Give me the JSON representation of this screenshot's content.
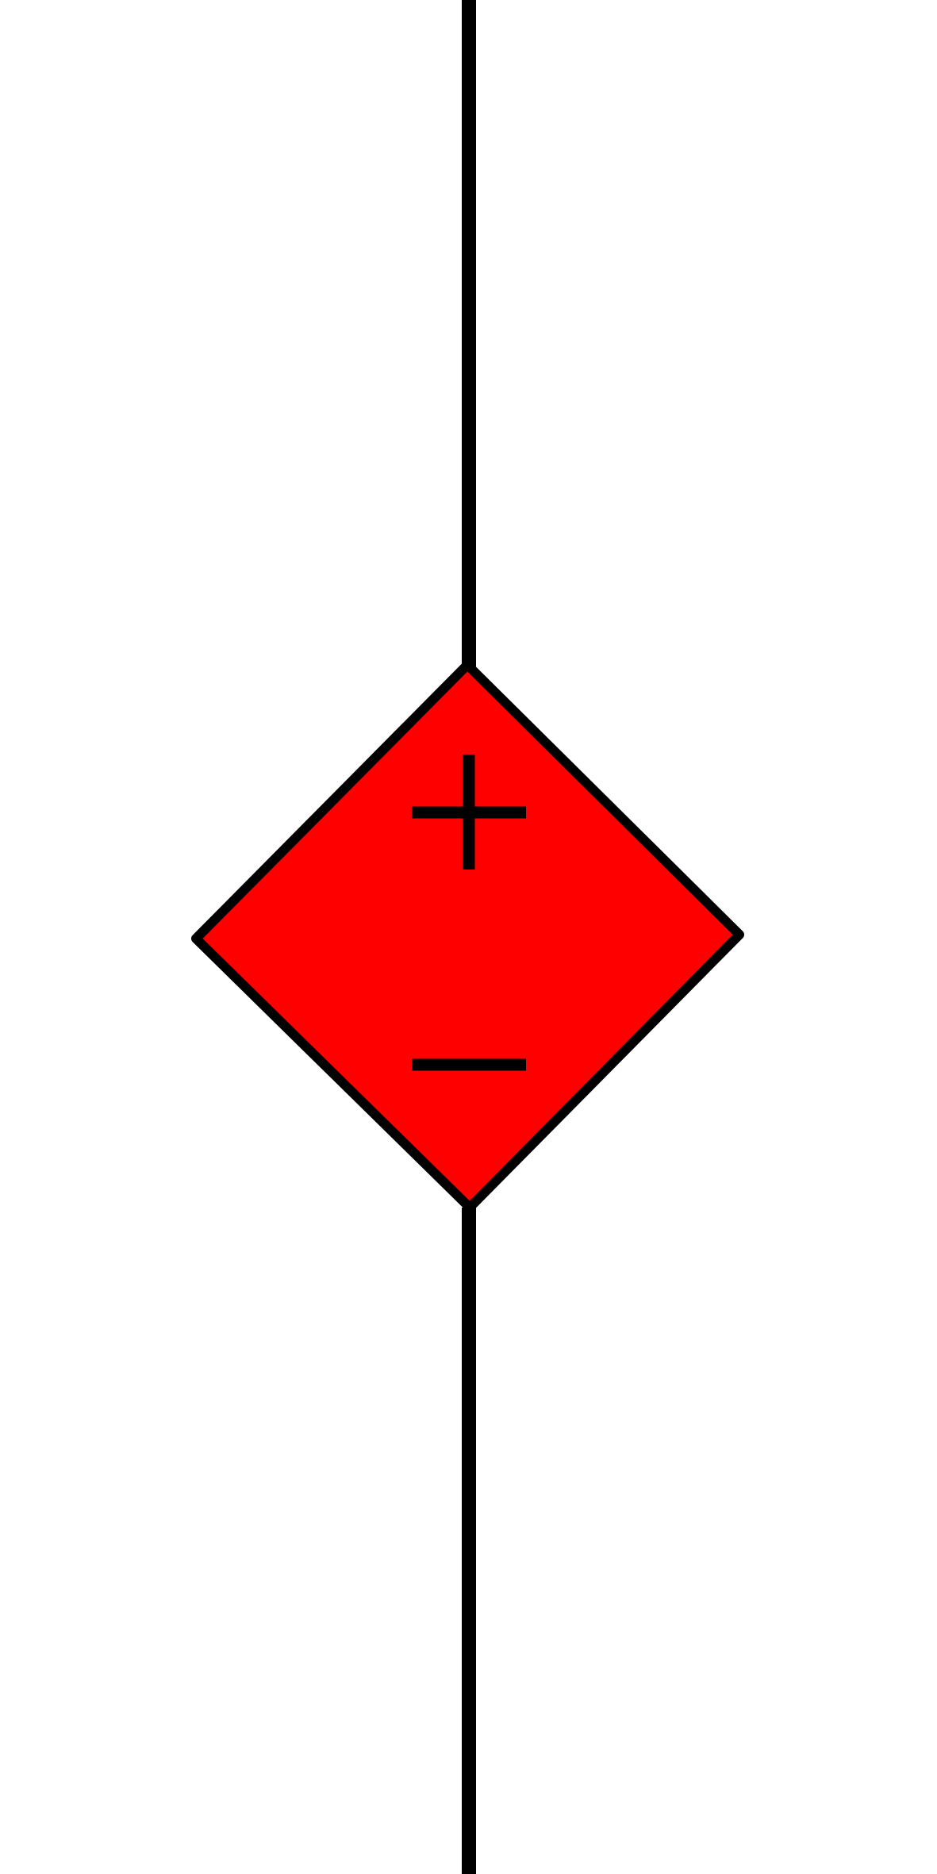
{
  "symbol": {
    "kind": "dependent-voltage-source",
    "icon_name": "dependent-voltage-source-icon",
    "fill_color": "#ff0000",
    "stroke_color": "#000000",
    "background_color": "#ffffff",
    "polarity_top": "+",
    "polarity_bottom": "−"
  }
}
